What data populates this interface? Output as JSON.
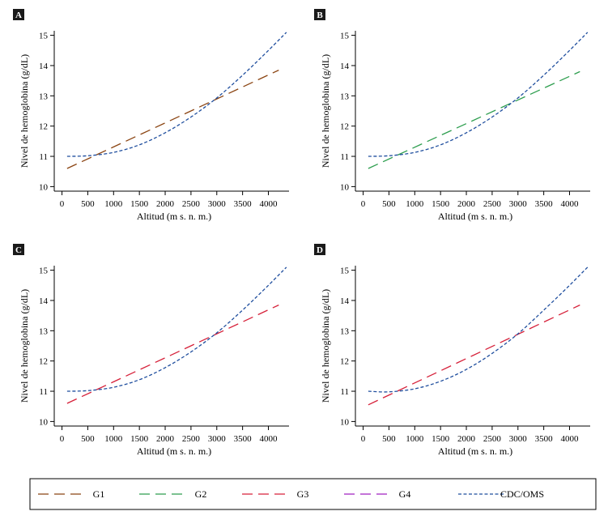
{
  "chart_data": [
    {
      "panel": "A",
      "type": "line",
      "xlabel": "Altitud (m s. n. m.)",
      "ylabel": "Nivel de hemoglobina (g/dL)",
      "xlim": [
        -150,
        4400
      ],
      "ylim": [
        9.85,
        15.15
      ],
      "xticks": [
        0,
        500,
        1000,
        1500,
        2000,
        2500,
        3000,
        3500,
        4000
      ],
      "yticks": [
        10,
        11,
        12,
        13,
        14,
        15
      ],
      "series": [
        {
          "name": "G1",
          "color": "#8B4513",
          "dash": "long",
          "x": [
            100,
            4200
          ],
          "y": [
            10.6,
            13.85
          ]
        },
        {
          "name": "CDC/OMS",
          "color": "#1F4E9E",
          "dash": "short",
          "x": [
            100,
            500,
            1000,
            1500,
            2000,
            2500,
            3000,
            3500,
            4000,
            4350
          ],
          "y": [
            11.0,
            11.02,
            11.13,
            11.38,
            11.78,
            12.3,
            12.93,
            13.68,
            14.5,
            15.1
          ]
        }
      ]
    },
    {
      "panel": "B",
      "type": "line",
      "xlabel": "Altitud (m s. n. m.)",
      "ylabel": "Nivel de hemoglobina (g/dL)",
      "xlim": [
        -150,
        4400
      ],
      "ylim": [
        9.85,
        15.15
      ],
      "xticks": [
        0,
        500,
        1000,
        1500,
        2000,
        2500,
        3000,
        3500,
        4000
      ],
      "yticks": [
        10,
        11,
        12,
        13,
        14,
        15
      ],
      "series": [
        {
          "name": "G2",
          "color": "#2E9E4F",
          "dash": "long",
          "x": [
            100,
            4200
          ],
          "y": [
            10.6,
            13.8
          ]
        },
        {
          "name": "CDC/OMS",
          "color": "#1F4E9E",
          "dash": "short",
          "x": [
            100,
            500,
            1000,
            1500,
            2000,
            2500,
            3000,
            3500,
            4000,
            4350
          ],
          "y": [
            11.0,
            11.02,
            11.13,
            11.38,
            11.78,
            12.3,
            12.93,
            13.68,
            14.5,
            15.1
          ]
        }
      ]
    },
    {
      "panel": "C",
      "type": "line",
      "xlabel": "Altitud (m s. n. m.)",
      "ylabel": "Nivel de hemoglobina (g/dL)",
      "xlim": [
        -150,
        4400
      ],
      "ylim": [
        9.85,
        15.15
      ],
      "xticks": [
        0,
        500,
        1000,
        1500,
        2000,
        2500,
        3000,
        3500,
        4000
      ],
      "yticks": [
        10,
        11,
        12,
        13,
        14,
        15
      ],
      "series": [
        {
          "name": "G3",
          "color": "#D6213A",
          "dash": "long",
          "x": [
            100,
            4200
          ],
          "y": [
            10.6,
            13.85
          ]
        },
        {
          "name": "CDC/OMS",
          "color": "#1F4E9E",
          "dash": "short",
          "x": [
            100,
            500,
            1000,
            1500,
            2000,
            2500,
            3000,
            3500,
            4000,
            4350
          ],
          "y": [
            11.0,
            11.02,
            11.13,
            11.38,
            11.78,
            12.3,
            12.93,
            13.68,
            14.5,
            15.1
          ]
        }
      ]
    },
    {
      "panel": "D",
      "type": "line",
      "xlabel": "Altitud (m s. n. m.)",
      "ylabel": "Nivel de hemoglobina (g/dL)",
      "xlim": [
        -150,
        4400
      ],
      "ylim": [
        9.85,
        15.15
      ],
      "xticks": [
        0,
        500,
        1000,
        1500,
        2000,
        2500,
        3000,
        3500,
        4000
      ],
      "yticks": [
        10,
        11,
        12,
        13,
        14,
        15
      ],
      "series": [
        {
          "name": "G3",
          "color": "#D6213A",
          "dash": "long",
          "x": [
            100,
            4200
          ],
          "y": [
            10.55,
            13.85
          ]
        },
        {
          "name": "CDC/OMS",
          "color": "#1F4E9E",
          "dash": "short",
          "x": [
            100,
            500,
            1000,
            1500,
            2000,
            2500,
            3000,
            3500,
            4000,
            4350
          ],
          "y": [
            11.0,
            10.98,
            11.08,
            11.33,
            11.72,
            12.25,
            12.9,
            13.68,
            14.5,
            15.1
          ]
        }
      ]
    }
  ],
  "legend": {
    "position": "bottom",
    "items": [
      {
        "name": "G1",
        "color": "#8B4513",
        "dash": "long"
      },
      {
        "name": "G2",
        "color": "#2E9E4F",
        "dash": "long"
      },
      {
        "name": "G3",
        "color": "#D6213A",
        "dash": "long"
      },
      {
        "name": "G4",
        "color": "#A020C0",
        "dash": "long"
      },
      {
        "name": "CDC/OMS",
        "color": "#1F4E9E",
        "dash": "short"
      }
    ]
  }
}
